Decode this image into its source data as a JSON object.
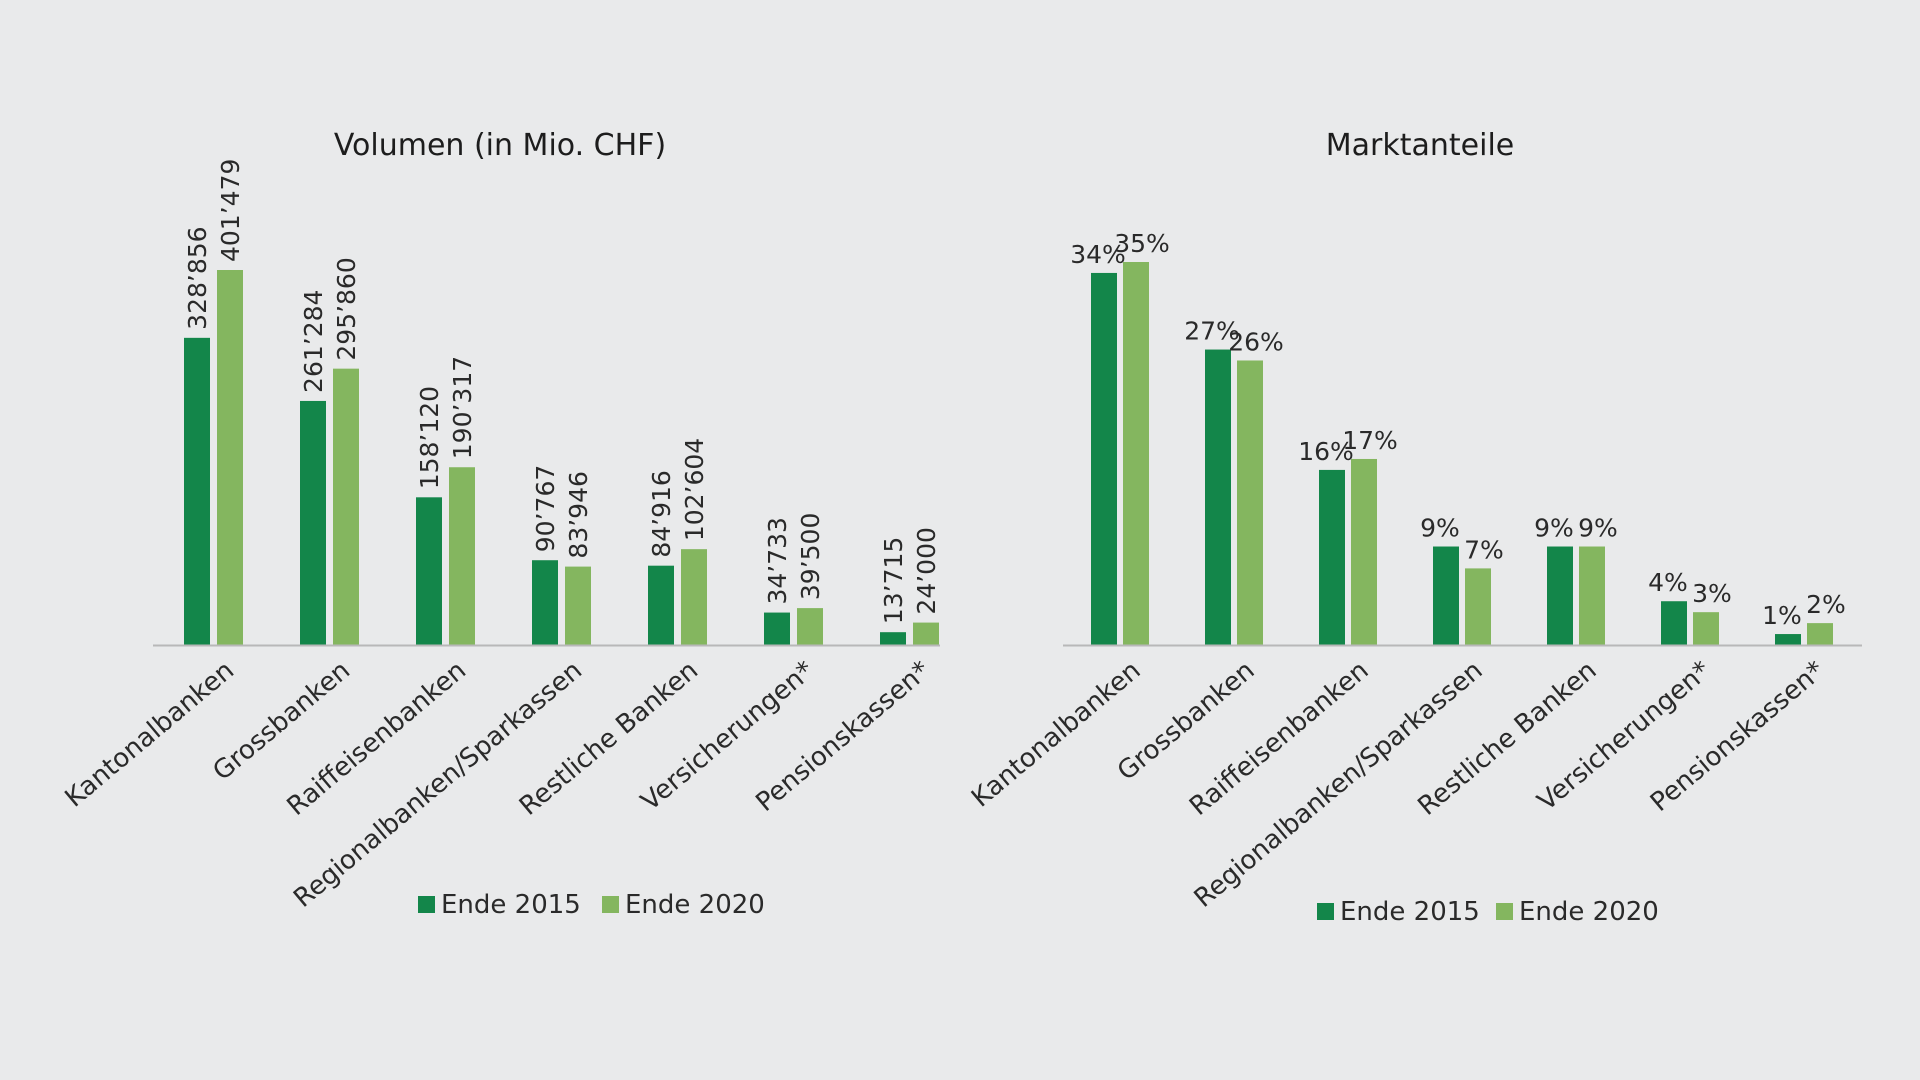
{
  "colors": {
    "background": "#e9eaeb",
    "axis": "#b8b8b8",
    "series_2015": "#13864a",
    "series_2020": "#84b65f"
  },
  "chart_data": [
    {
      "type": "bar",
      "title": "Volumen (in Mio. CHF)",
      "xlabel": "",
      "ylabel": "",
      "ylim": [
        0,
        401479
      ],
      "categories": [
        "Kantonalbanken",
        "Grossbanken",
        "Raiffeisenbanken",
        "Regionalbanken/Sparkassen",
        "Restliche Banken",
        "Versicherungen*",
        "Pensionskassen*"
      ],
      "series": [
        {
          "name": "Ende 2015",
          "values": [
            328856,
            261284,
            158120,
            90767,
            84916,
            34733,
            13715
          ],
          "labels": [
            "328’856",
            "261’284",
            "158’120",
            "90’767",
            "84’916",
            "34’733",
            "13’715"
          ]
        },
        {
          "name": "Ende 2020",
          "values": [
            401479,
            295860,
            190317,
            83946,
            102604,
            39500,
            24000
          ],
          "labels": [
            "401’479",
            "295’860",
            "190’317",
            "83’946",
            "102’604",
            "39’500",
            "24’000"
          ]
        }
      ],
      "legend": "bottom",
      "grid": false
    },
    {
      "type": "bar",
      "title": "Marktanteile",
      "xlabel": "",
      "ylabel": "",
      "ylim": [
        0,
        35
      ],
      "categories": [
        "Kantonalbanken",
        "Grossbanken",
        "Raiffeisenbanken",
        "Regionalbanken/Sparkassen",
        "Restliche Banken",
        "Versicherungen*",
        "Pensionskassen*"
      ],
      "series": [
        {
          "name": "Ende 2015",
          "values": [
            34,
            27,
            16,
            9,
            9,
            4,
            1
          ],
          "labels": [
            "34%",
            "27%",
            "16%",
            "9%",
            "9%",
            "4%",
            "1%"
          ]
        },
        {
          "name": "Ende 2020",
          "values": [
            35,
            26,
            17,
            7,
            9,
            3,
            2
          ],
          "labels": [
            "35%",
            "26%",
            "17%",
            "7%",
            "9%",
            "3%",
            "2%"
          ]
        }
      ],
      "legend": "bottom",
      "grid": false
    }
  ]
}
